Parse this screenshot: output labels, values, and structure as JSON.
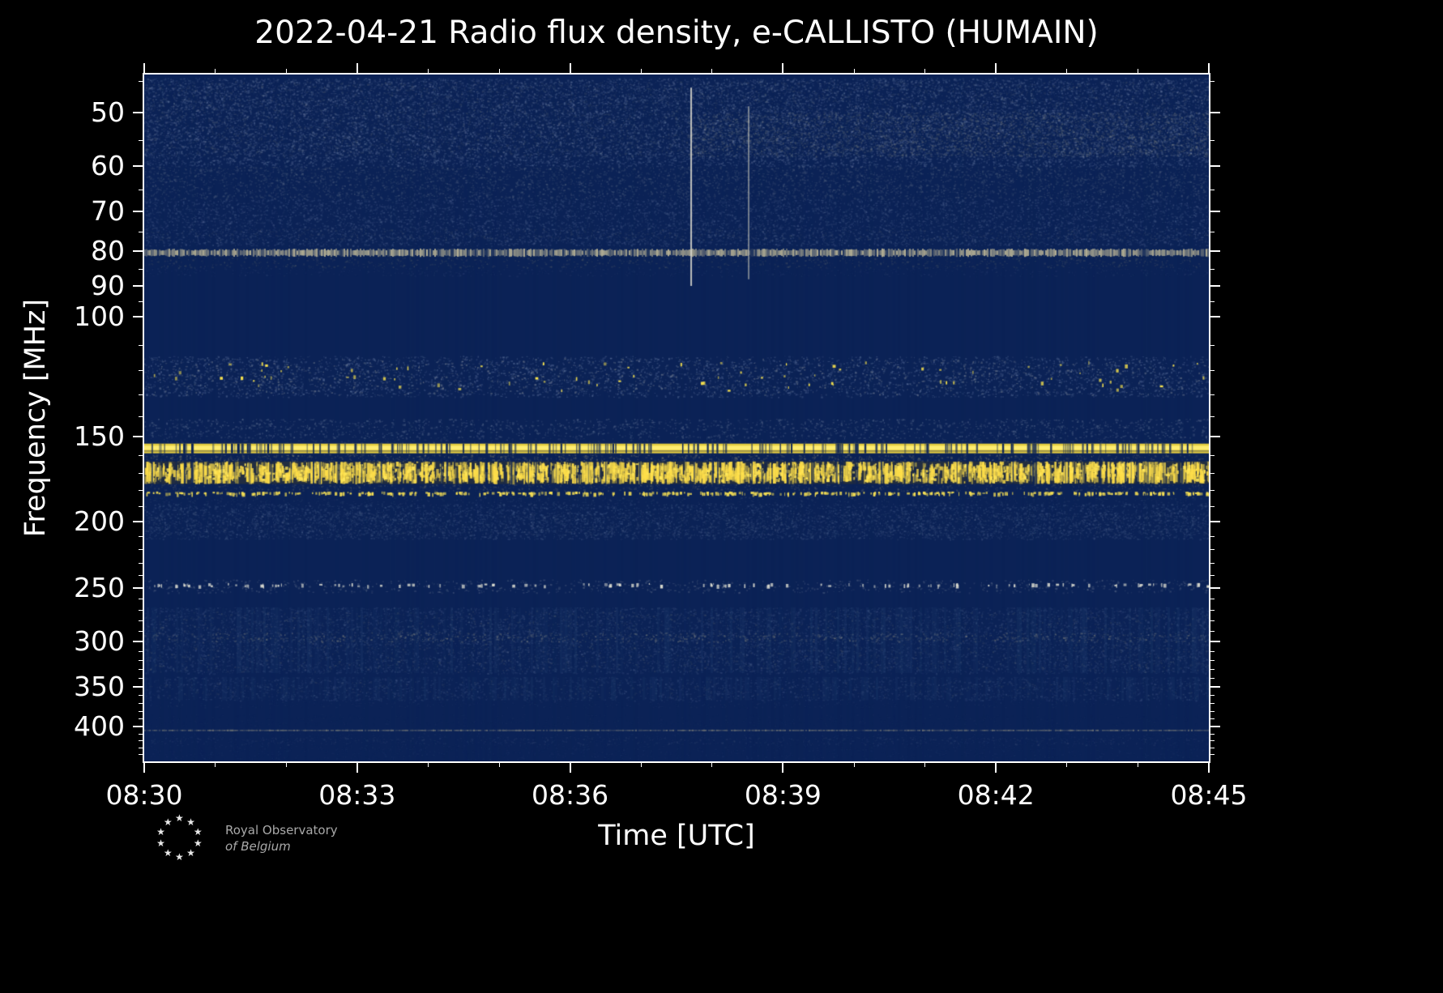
{
  "chart_data": {
    "type": "heatmap",
    "title": "2022-04-21 Radio flux density, e-CALLISTO (HUMAIN)",
    "xlabel": "Time [UTC]",
    "ylabel": "Frequency [MHz]",
    "x_ticks": [
      "08:30",
      "08:33",
      "08:36",
      "08:39",
      "08:42",
      "08:45"
    ],
    "x_minor_tick_minutes": 15,
    "y_ticks": [
      50,
      60,
      70,
      80,
      90,
      100,
      150,
      200,
      250,
      300,
      350,
      400
    ],
    "y_scale": "log",
    "y_axis_inverted_low_at_top": true,
    "time_range_utc": [
      "08:30",
      "08:45"
    ],
    "freq_range_mhz": [
      44,
      450
    ],
    "legend": "none",
    "grid": false,
    "colors": {
      "background": "#000000",
      "base": "#0b2256",
      "bright_rfi": "#ffe34d",
      "pale_line": "#e0d4a4",
      "frame": "#ffffff"
    },
    "bands": [
      {
        "style": "noise",
        "f1": 44.5,
        "f2": 60,
        "color": "#93a3c4",
        "alpha": 0.22,
        "density": 0.12,
        "seed": 11
      },
      {
        "style": "noise",
        "f1": 45,
        "f2": 58,
        "color": "#c2ba96",
        "alpha": 0.1,
        "density": 0.05,
        "seed": 12
      },
      {
        "style": "noise",
        "f1": 50,
        "f2": 58,
        "x1": 0.51,
        "color": "#c8c09a",
        "alpha": 0.17,
        "density": 0.09,
        "seed": 13
      },
      {
        "style": "noise",
        "f1": 60,
        "f2": 67,
        "color": "#a7aeb2",
        "alpha": 0.16,
        "density": 0.09,
        "seed": 14
      },
      {
        "style": "noise",
        "f1": 67,
        "f2": 78.5,
        "color": "#8292b6",
        "alpha": 0.19,
        "density": 0.1,
        "seed": 15
      },
      {
        "style": "noise",
        "f1": 74,
        "f2": 77,
        "color": "#b8b294",
        "alpha": 0.1,
        "density": 0.05,
        "seed": 16
      },
      {
        "style": "textured-line",
        "f1": 79.3,
        "f2": 81.6,
        "color": "#e0d4a4",
        "alpha": 0.78,
        "seed": 17
      },
      {
        "style": "noise",
        "f1": 81.6,
        "f2": 84.5,
        "color": "#b2aa82",
        "alpha": 0.14,
        "density": 0.05,
        "seed": 18
      },
      {
        "style": "noise",
        "f1": 84.5,
        "f2": 87,
        "color": "#6d7da2",
        "alpha": 0.1,
        "density": 0.05,
        "seed": 19
      },
      {
        "style": "noise",
        "f1": 114,
        "f2": 131,
        "color": "#90a2c6",
        "alpha": 0.26,
        "density": 0.06,
        "seed": 20
      },
      {
        "style": "noise",
        "f1": 115,
        "f2": 130,
        "color": "#dcd8c4",
        "alpha": 0.28,
        "density": 0.018,
        "seed": 21
      },
      {
        "style": "dashes",
        "f1": 116,
        "f2": 129,
        "color": "#ffe84d",
        "count": 80,
        "seed": 22
      },
      {
        "style": "noise",
        "f1": 141,
        "f2": 150.5,
        "color": "#9daabe",
        "alpha": 0.24,
        "density": 0.06,
        "seed": 23
      },
      {
        "style": "noise",
        "f1": 150.5,
        "f2": 153.5,
        "color": "#8c96ae",
        "alpha": 0.13,
        "density": 0.05,
        "seed": 24
      },
      {
        "style": "solid",
        "f1": 153.5,
        "f2": 158.6,
        "color": "#f6da3f",
        "alpha": 0.93,
        "core": "#fff076",
        "dropouts": 150,
        "seed": 25
      },
      {
        "style": "wash",
        "f1": 157.1,
        "f2": 157.7,
        "color": "#0b2256",
        "alpha": 0.45,
        "seed": 26
      },
      {
        "style": "noise",
        "f1": 159,
        "f2": 163,
        "color": "#bcb284",
        "alpha": 0.25,
        "density": 0.08,
        "seed": 27
      },
      {
        "style": "wash",
        "f1": 163,
        "f2": 176,
        "color": "#3e3c28",
        "alpha": 0.45,
        "seed": 28
      },
      {
        "style": "speckle",
        "f1": 163,
        "f2": 176,
        "color": "#ffdf4a",
        "alpha": 0.9,
        "density": 0.05,
        "seed": 29
      },
      {
        "style": "dashes",
        "f1": 164,
        "f2": 175,
        "color": "#ffe658",
        "count": 500,
        "seed": 30
      },
      {
        "style": "dropcols",
        "f1": 153.5,
        "f2": 176,
        "count": 90,
        "seed": 31
      },
      {
        "style": "noise",
        "f1": 176,
        "f2": 180,
        "color": "#b2aa80",
        "alpha": 0.18,
        "density": 0.06,
        "seed": 32
      },
      {
        "style": "dashes",
        "f1": 180.5,
        "f2": 183,
        "color": "#f4de54",
        "count": 420,
        "seed": 33
      },
      {
        "style": "noise",
        "f1": 183.5,
        "f2": 189,
        "color": "#8494b0",
        "alpha": 0.11,
        "density": 0.05,
        "seed": 34
      },
      {
        "style": "noise",
        "f1": 188,
        "f2": 212,
        "color": "#62779f",
        "alpha": 0.24,
        "density": 0.1,
        "seed": 35
      },
      {
        "style": "noise",
        "f1": 193,
        "f2": 209,
        "color": "#97a0b0",
        "alpha": 0.12,
        "density": 0.05,
        "seed": 36
      },
      {
        "style": "noise",
        "f1": 243,
        "f2": 254,
        "color": "#aeb4bc",
        "alpha": 0.22,
        "density": 0.04,
        "seed": 37
      },
      {
        "style": "dashes",
        "f1": 246,
        "f2": 250,
        "color": "#dcdcd0",
        "count": 130,
        "seed": 38
      },
      {
        "style": "noise",
        "f1": 267,
        "f2": 334,
        "color": "#60739c",
        "alpha": 0.22,
        "density": 0.08,
        "seed": 39
      },
      {
        "style": "noise",
        "f1": 270,
        "f2": 332,
        "color": "#c4ba90",
        "alpha": 0.13,
        "density": 0.022,
        "seed": 40
      },
      {
        "style": "noise",
        "f1": 291,
        "f2": 300,
        "color": "#d2c69a",
        "alpha": 0.26,
        "density": 0.05,
        "seed": 41
      },
      {
        "style": "colstripe",
        "f1": 267,
        "f2": 334,
        "color": "#1d3a6b",
        "alpha": 0.35,
        "seed": 42
      },
      {
        "style": "noise",
        "f1": 338,
        "f2": 366,
        "color": "#60739c",
        "alpha": 0.2,
        "density": 0.07,
        "seed": 43
      },
      {
        "style": "noise",
        "f1": 342,
        "f2": 362,
        "color": "#bab292",
        "alpha": 0.1,
        "density": 0.02,
        "seed": 44
      },
      {
        "style": "colstripe",
        "f1": 338,
        "f2": 366,
        "color": "#1d3a6b",
        "alpha": 0.3,
        "seed": 45
      },
      {
        "style": "noise",
        "f1": 367,
        "f2": 375,
        "color": "#53678e",
        "alpha": 0.1,
        "density": 0.05,
        "seed": 46
      },
      {
        "style": "noise",
        "f1": 383,
        "f2": 399,
        "color": "#4a5f88",
        "alpha": 0.07,
        "density": 0.04,
        "seed": 47
      },
      {
        "style": "textured-line",
        "f1": 404,
        "f2": 406.6,
        "color": "#bab08a",
        "alpha": 0.5,
        "seed": 48
      },
      {
        "style": "noise",
        "f1": 408,
        "f2": 446,
        "color": "#40578a",
        "alpha": 0.1,
        "density": 0.05,
        "seed": 49
      },
      {
        "style": "noise",
        "f1": 414,
        "f2": 425,
        "color": "#8e9ab0",
        "alpha": 0.1,
        "density": 0.05,
        "seed": 50
      }
    ],
    "vertical_events": [
      {
        "t": 0.513,
        "f1": 46,
        "f2": 90,
        "color": "#ece8d8",
        "width": 2,
        "alpha": 0.8
      },
      {
        "t": 0.567,
        "f1": 49,
        "f2": 88,
        "color": "#dcd8c2",
        "width": 2,
        "alpha": 0.5
      }
    ]
  },
  "logo": {
    "line1": "Royal Observatory",
    "line2": "of Belgium",
    "star_glyph": "★",
    "star_count": 10
  }
}
